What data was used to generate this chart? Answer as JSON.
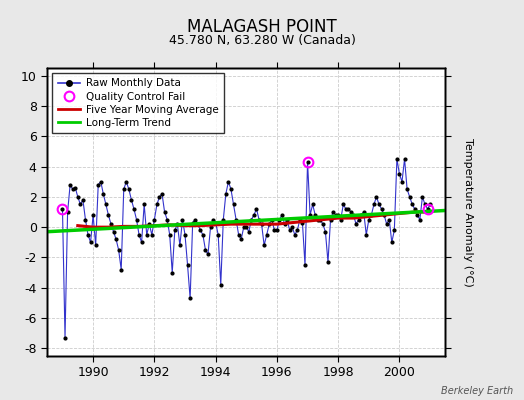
{
  "title": "MALAGASH POINT",
  "subtitle": "45.780 N, 63.280 W (Canada)",
  "ylabel": "Temperature Anomaly (°C)",
  "watermark": "Berkeley Earth",
  "xlim": [
    1988.5,
    2001.5
  ],
  "ylim": [
    -8.5,
    10.5
  ],
  "yticks": [
    -8,
    -6,
    -4,
    -2,
    0,
    2,
    4,
    6,
    8,
    10
  ],
  "xticks": [
    1990,
    1992,
    1994,
    1996,
    1998,
    2000
  ],
  "fig_bg_color": "#e8e8e8",
  "plot_bg_color": "#ffffff",
  "raw_color": "#3333cc",
  "moving_avg_color": "#cc0000",
  "trend_color": "#00cc00",
  "qc_fail_color": "#ff00ff",
  "grid_color": "#cccccc",
  "raw_monthly_x": [
    1989.0,
    1989.083,
    1989.167,
    1989.25,
    1989.333,
    1989.417,
    1989.5,
    1989.583,
    1989.667,
    1989.75,
    1989.833,
    1989.917,
    1990.0,
    1990.083,
    1990.167,
    1990.25,
    1990.333,
    1990.417,
    1990.5,
    1990.583,
    1990.667,
    1990.75,
    1990.833,
    1990.917,
    1991.0,
    1991.083,
    1991.167,
    1991.25,
    1991.333,
    1991.417,
    1991.5,
    1991.583,
    1991.667,
    1991.75,
    1991.833,
    1991.917,
    1992.0,
    1992.083,
    1992.167,
    1992.25,
    1992.333,
    1992.417,
    1992.5,
    1992.583,
    1992.667,
    1992.75,
    1992.833,
    1992.917,
    1993.0,
    1993.083,
    1993.167,
    1993.25,
    1993.333,
    1993.417,
    1993.5,
    1993.583,
    1993.667,
    1993.75,
    1993.833,
    1993.917,
    1994.0,
    1994.083,
    1994.167,
    1994.25,
    1994.333,
    1994.417,
    1994.5,
    1994.583,
    1994.667,
    1994.75,
    1994.833,
    1994.917,
    1995.0,
    1995.083,
    1995.167,
    1995.25,
    1995.333,
    1995.417,
    1995.5,
    1995.583,
    1995.667,
    1995.75,
    1995.833,
    1995.917,
    1996.0,
    1996.083,
    1996.167,
    1996.25,
    1996.333,
    1996.417,
    1996.5,
    1996.583,
    1996.667,
    1996.75,
    1996.833,
    1996.917,
    1997.0,
    1997.083,
    1997.167,
    1997.25,
    1997.333,
    1997.417,
    1997.5,
    1997.583,
    1997.667,
    1997.75,
    1997.833,
    1997.917,
    1998.0,
    1998.083,
    1998.167,
    1998.25,
    1998.333,
    1998.417,
    1998.5,
    1998.583,
    1998.667,
    1998.75,
    1998.833,
    1998.917,
    1999.0,
    1999.083,
    1999.167,
    1999.25,
    1999.333,
    1999.417,
    1999.5,
    1999.583,
    1999.667,
    1999.75,
    1999.833,
    1999.917,
    2000.0,
    2000.083,
    2000.167,
    2000.25,
    2000.333,
    2000.417,
    2000.5,
    2000.583,
    2000.667,
    2000.75,
    2000.833,
    2000.917,
    2001.0
  ],
  "raw_monthly_y": [
    1.2,
    -7.3,
    1.0,
    2.8,
    2.5,
    2.6,
    2.0,
    1.5,
    1.8,
    0.5,
    -0.5,
    -1.0,
    0.8,
    -1.2,
    2.8,
    3.0,
    2.2,
    1.5,
    0.8,
    0.2,
    -0.3,
    -0.8,
    -1.5,
    -2.8,
    2.5,
    3.0,
    2.5,
    1.8,
    1.2,
    0.5,
    -0.5,
    -1.0,
    1.5,
    -0.5,
    0.2,
    -0.5,
    0.5,
    1.5,
    2.0,
    2.2,
    1.0,
    0.5,
    -0.5,
    -3.0,
    -0.2,
    0.2,
    -1.2,
    0.5,
    -0.5,
    -2.5,
    -4.7,
    0.3,
    0.5,
    0.2,
    -0.2,
    -0.5,
    -1.5,
    -1.8,
    0.0,
    0.5,
    0.3,
    -0.5,
    -3.8,
    0.5,
    2.2,
    3.0,
    2.5,
    1.5,
    0.5,
    -0.5,
    -0.8,
    0.0,
    0.0,
    -0.3,
    0.5,
    0.8,
    1.2,
    0.5,
    0.2,
    -1.2,
    -0.5,
    0.2,
    0.5,
    -0.2,
    -0.2,
    0.5,
    0.8,
    0.2,
    0.5,
    -0.2,
    0.0,
    -0.5,
    -0.2,
    0.5,
    0.3,
    -2.5,
    4.3,
    0.8,
    1.5,
    0.8,
    0.5,
    0.5,
    0.2,
    -0.3,
    -2.3,
    0.5,
    1.0,
    0.8,
    0.8,
    0.5,
    1.5,
    1.2,
    1.2,
    1.0,
    0.8,
    0.2,
    0.5,
    0.8,
    1.0,
    -0.5,
    0.5,
    0.8,
    1.5,
    2.0,
    1.5,
    1.2,
    0.8,
    0.2,
    0.5,
    -1.0,
    -0.2,
    4.5,
    3.5,
    3.0,
    4.5,
    2.5,
    2.0,
    1.5,
    1.2,
    0.8,
    0.5,
    2.0,
    1.5,
    1.2,
    1.5
  ],
  "qc_fail_points_x": [
    1989.0,
    1997.0,
    2000.917
  ],
  "qc_fail_points_y": [
    1.2,
    4.3,
    1.2
  ],
  "moving_avg_x": [
    1989.5,
    1990.0,
    1990.5,
    1991.0,
    1991.5,
    1992.0,
    1992.5,
    1993.0,
    1993.5,
    1994.0,
    1994.5,
    1995.0,
    1995.5,
    1996.0,
    1996.5,
    1997.0,
    1997.5,
    1998.0,
    1998.5,
    1999.0,
    1999.5,
    2000.0,
    2000.5,
    2001.0
  ],
  "moving_avg_y": [
    0.1,
    0.0,
    0.0,
    0.05,
    0.05,
    0.1,
    0.15,
    0.1,
    0.1,
    0.15,
    0.2,
    0.2,
    0.2,
    0.2,
    0.3,
    0.4,
    0.5,
    0.6,
    0.6,
    0.7,
    0.8,
    0.9,
    1.0,
    1.0
  ],
  "trend_x": [
    1988.5,
    2001.5
  ],
  "trend_y": [
    -0.3,
    1.1
  ]
}
